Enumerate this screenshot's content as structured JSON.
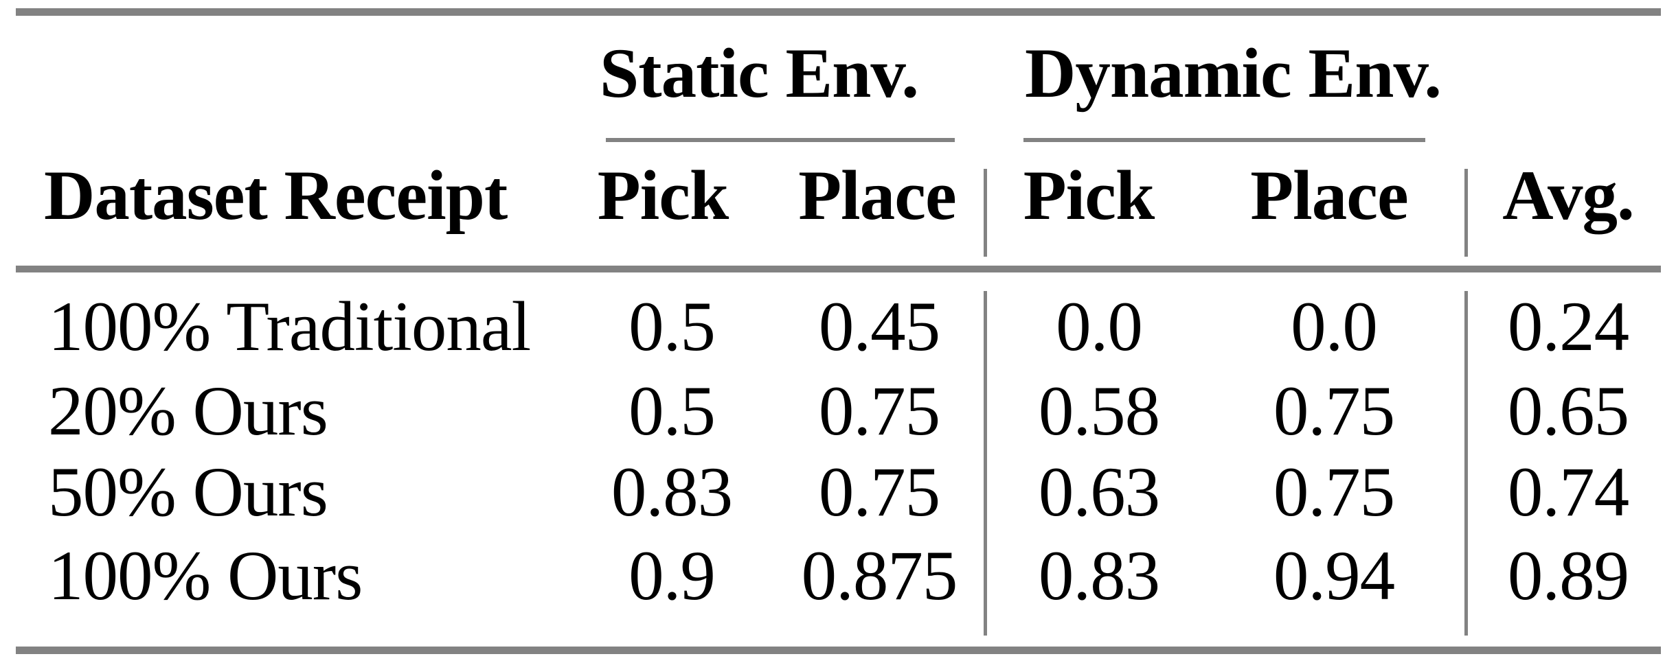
{
  "table": {
    "group_headers": {
      "static": "Static Env.",
      "dynamic": "Dynamic Env."
    },
    "column_headers": {
      "dataset": "Dataset Receipt",
      "static_pick": "Pick",
      "static_place": "Place",
      "dynamic_pick": "Pick",
      "dynamic_place": "Place",
      "avg": "Avg."
    },
    "rows": [
      {
        "label": "100% Traditional",
        "static_pick": "0.5",
        "static_place": "0.45",
        "dynamic_pick": "0.0",
        "dynamic_place": "0.0",
        "avg": "0.24"
      },
      {
        "label": "20% Ours",
        "static_pick": "0.5",
        "static_place": "0.75",
        "dynamic_pick": "0.58",
        "dynamic_place": "0.75",
        "avg": "0.65"
      },
      {
        "label": "50% Ours",
        "static_pick": "0.83",
        "static_place": "0.75",
        "dynamic_pick": "0.63",
        "dynamic_place": "0.75",
        "avg": "0.74"
      },
      {
        "label": "100% Ours",
        "static_pick": "0.9",
        "static_place": "0.875",
        "dynamic_pick": "0.83",
        "dynamic_place": "0.94",
        "avg": "0.89"
      }
    ],
    "colors": {
      "rule": "#828282",
      "text": "#000000",
      "background": "#ffffff"
    }
  },
  "chart_data": {
    "type": "table",
    "title": "",
    "column_groups": [
      "",
      "Static Env.",
      "Static Env.",
      "Dynamic Env.",
      "Dynamic Env.",
      ""
    ],
    "columns": [
      "Dataset Receipt",
      "Pick",
      "Place",
      "Pick",
      "Place",
      "Avg."
    ],
    "rows": [
      [
        "100% Traditional",
        0.5,
        0.45,
        0.0,
        0.0,
        0.24
      ],
      [
        "20% Ours",
        0.5,
        0.75,
        0.58,
        0.75,
        0.65
      ],
      [
        "50% Ours",
        0.83,
        0.75,
        0.63,
        0.75,
        0.74
      ],
      [
        "100% Ours",
        0.9,
        0.875,
        0.83,
        0.94,
        0.89
      ]
    ]
  }
}
